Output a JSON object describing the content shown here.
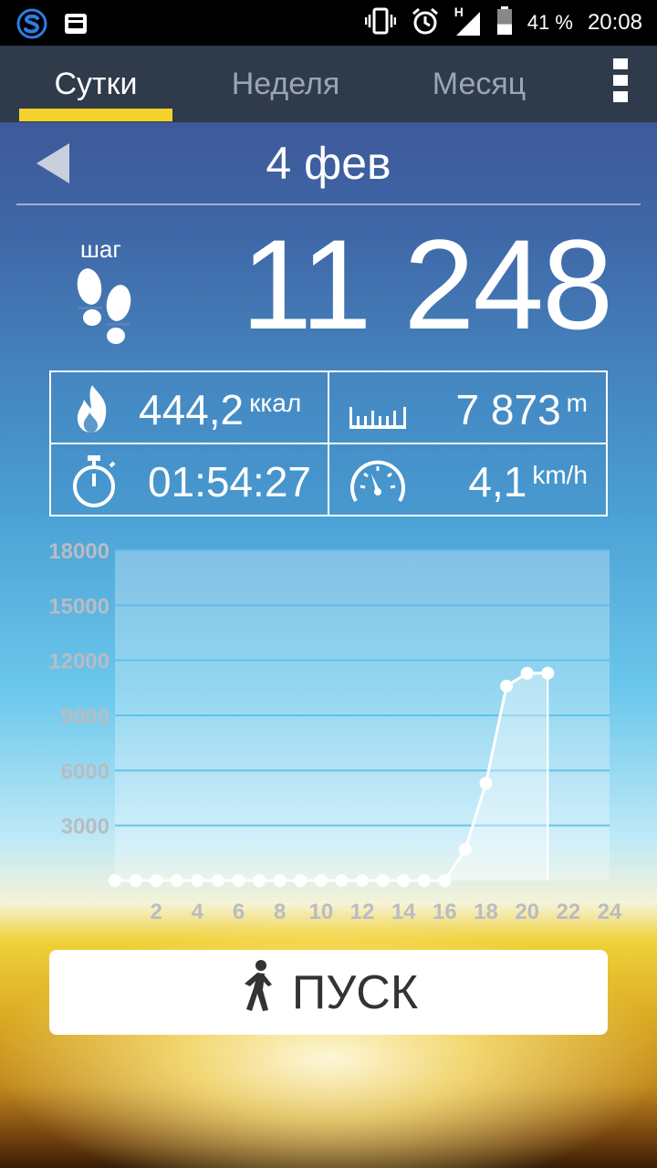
{
  "status_bar": {
    "network_label": "H",
    "battery_percent": "41 %",
    "battery_level": 0.41,
    "time": "20:08",
    "icons": [
      "app-s-icon",
      "inbox-icon",
      "vibrate-icon",
      "alarm-icon",
      "signal-icon",
      "battery-icon"
    ]
  },
  "tabs": [
    {
      "label": "Сутки",
      "active": true
    },
    {
      "label": "Неделя",
      "active": false
    },
    {
      "label": "Месяц",
      "active": false
    }
  ],
  "header": {
    "date": "4 фев"
  },
  "steps": {
    "label": "шаг",
    "value": "11 248"
  },
  "stats": {
    "calories": {
      "value": "444,2",
      "unit": "ккал"
    },
    "distance": {
      "value": "7 873",
      "unit": "m"
    },
    "duration": {
      "value": "01:54:27"
    },
    "speed": {
      "value": "4,1",
      "unit": "km/h"
    }
  },
  "chart_data": {
    "type": "line",
    "x": [
      0,
      1,
      2,
      3,
      4,
      5,
      6,
      7,
      8,
      9,
      10,
      11,
      12,
      13,
      14,
      15,
      16,
      17,
      18,
      19,
      20,
      21
    ],
    "values": [
      0,
      0,
      0,
      0,
      0,
      0,
      0,
      0,
      0,
      0,
      0,
      0,
      0,
      0,
      0,
      0,
      0,
      1700,
      5300,
      10600,
      11300,
      11300
    ],
    "xticks": [
      2,
      4,
      6,
      8,
      10,
      12,
      14,
      16,
      18,
      20,
      22,
      24
    ],
    "yticks": [
      3000,
      6000,
      9000,
      12000,
      15000,
      18000
    ],
    "xlim": [
      0,
      24
    ],
    "ylim": [
      0,
      18000
    ],
    "grid": true,
    "line_color": "#ffffff",
    "label_color": "#b9bcc2"
  },
  "start_button": {
    "label": "ПУСК"
  }
}
